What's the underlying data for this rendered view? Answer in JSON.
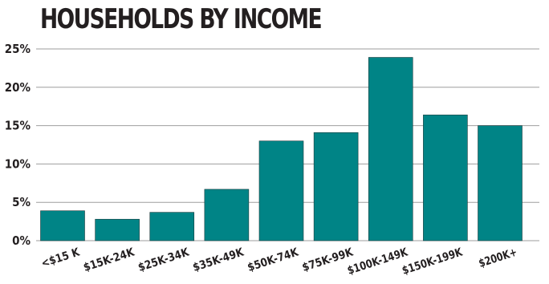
{
  "chart_data": {
    "type": "bar",
    "title": "HOUSEHOLDS BY INCOME",
    "xlabel": "",
    "ylabel": "",
    "categories": [
      "<$15 K",
      "$15K-24K",
      "$25K-34K",
      "$35K-49K",
      "$50K-74K",
      "$75K-99K",
      "$100K-149K",
      "$150K-199K",
      "$200K+"
    ],
    "values": [
      3.9,
      2.8,
      3.7,
      6.7,
      13.0,
      14.1,
      23.9,
      16.4,
      15.0
    ],
    "ylim": [
      0,
      25
    ],
    "yticks": [
      0,
      5,
      10,
      15,
      20,
      25
    ],
    "ytick_labels": [
      "0%",
      "5%",
      "10%",
      "15%",
      "20%",
      "25%"
    ],
    "grid": true,
    "bar_color": "#008486",
    "grid_color": "#9e9e9e"
  }
}
